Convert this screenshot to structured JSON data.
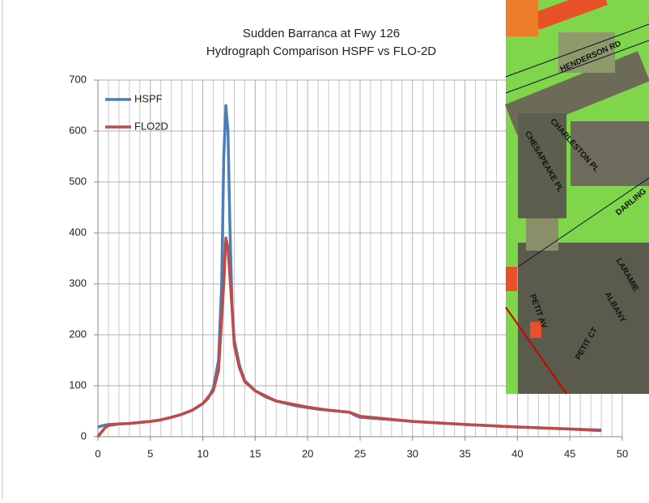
{
  "chart_data": {
    "type": "line",
    "title": "Sudden Barranca at Fwy 126",
    "subtitle": "Hydrograph Comparison HSPF vs FLO-2D",
    "xlim": [
      0,
      50
    ],
    "xticks": [
      0,
      5,
      10,
      15,
      20,
      25,
      30,
      35,
      40,
      45,
      50
    ],
    "x_minor_ticks": [
      1,
      2,
      3,
      4,
      6,
      7,
      8,
      9,
      11,
      12,
      13,
      14,
      16,
      17,
      18,
      19,
      21,
      22,
      23,
      24,
      26,
      27,
      28,
      29,
      31,
      32,
      33,
      34,
      36,
      37,
      38,
      39,
      41,
      42,
      43,
      44,
      46,
      47,
      48,
      49
    ],
    "ylim": [
      0,
      700
    ],
    "yticks": [
      0,
      100,
      200,
      300,
      400,
      500,
      600,
      700
    ],
    "grid": true,
    "legend": "upper left",
    "series": [
      {
        "name": "HSPF",
        "color": "#4a7ebb",
        "x": [
          0,
          0.5,
          1,
          2,
          3,
          4,
          5,
          6,
          7,
          8,
          9,
          10,
          10.5,
          11,
          11.5,
          11.8,
          12,
          12.2,
          12.4,
          12.6,
          12.8,
          13,
          13.5,
          14,
          15,
          16,
          17,
          18,
          19,
          20,
          21,
          22,
          23,
          24,
          24.5,
          25,
          27,
          30,
          35,
          40,
          45,
          48
        ],
        "values": [
          19,
          22,
          24,
          25,
          26,
          28,
          30,
          33,
          38,
          44,
          52,
          65,
          75,
          95,
          150,
          300,
          550,
          650,
          600,
          400,
          250,
          190,
          140,
          110,
          90,
          78,
          70,
          65,
          60,
          57,
          54,
          52,
          50,
          48,
          42,
          38,
          35,
          30,
          24,
          19,
          15,
          13
        ]
      },
      {
        "name": "FLO2D",
        "color": "#be4b48",
        "x": [
          0,
          0.3,
          0.7,
          1,
          2,
          3,
          4,
          5,
          6,
          7,
          8,
          9,
          10,
          11,
          11.5,
          12,
          12.2,
          12.4,
          12.8,
          13,
          13.5,
          14,
          15,
          17,
          20,
          22,
          24,
          25,
          30,
          35,
          40,
          45,
          48
        ],
        "values": [
          0,
          8,
          18,
          22,
          25,
          26,
          28,
          30,
          33,
          38,
          44,
          52,
          65,
          90,
          130,
          300,
          390,
          370,
          250,
          180,
          135,
          108,
          90,
          70,
          58,
          52,
          48,
          40,
          30,
          24,
          19,
          15,
          12
        ]
      }
    ]
  },
  "map": {
    "labels": [
      "HENDERSON RD",
      "CHARLESTON PL",
      "CHESAPEAKE PL",
      "DARLING",
      "LARAMIE",
      "ALBANY",
      "PETIT AV",
      "PETIT CT"
    ]
  }
}
